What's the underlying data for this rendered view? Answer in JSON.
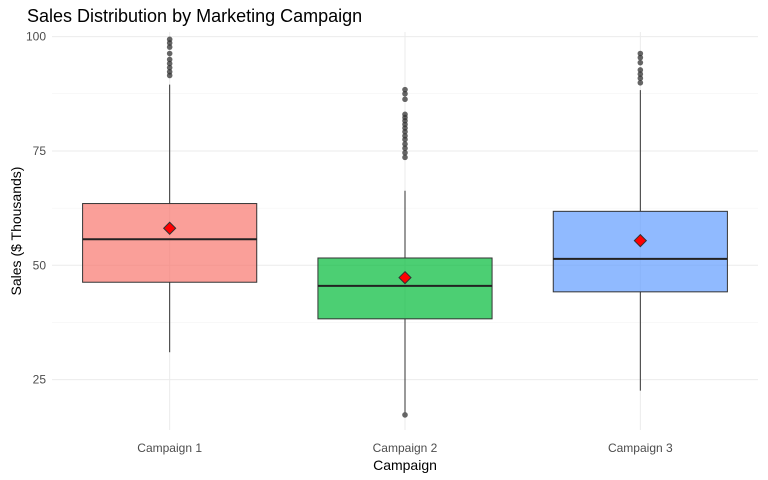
{
  "chart_data": {
    "type": "boxplot",
    "title": "Sales Distribution by Marketing Campaign",
    "xlabel": "Campaign",
    "ylabel": "Sales ($ Thousands)",
    "ylim": [
      14,
      101
    ],
    "y_ticks": [
      25,
      50,
      75,
      100
    ],
    "grid": true,
    "legend": "none",
    "mean_marker_color": "#FF0000",
    "categories": [
      "Campaign 1",
      "Campaign 2",
      "Campaign 3"
    ],
    "boxes": [
      {
        "category": "Campaign 1",
        "color": "#F8766D",
        "whisker_low": 31,
        "q1": 46.3,
        "median": 55.7,
        "q3": 63.5,
        "whisker_high": 89.5,
        "mean": 58.1,
        "outliers": [
          91.5,
          92.3,
          93.2,
          94.1,
          95.0,
          96.3,
          97.7,
          98.6,
          99.4
        ]
      },
      {
        "category": "Campaign 2",
        "color": "#00BA38",
        "whisker_low": 17.8,
        "q1": 38.3,
        "median": 45.5,
        "q3": 51.6,
        "whisker_high": 66.3,
        "mean": 47.3,
        "outliers": [
          17.3,
          73.6,
          74.6,
          75.6,
          76.5,
          77.5,
          78.3,
          79.2,
          80.0,
          80.8,
          81.6,
          82.3,
          83.0,
          86.3,
          87.5,
          88.4
        ]
      },
      {
        "category": "Campaign 3",
        "color": "#619CFF",
        "whisker_low": 22.6,
        "q1": 44.2,
        "median": 51.4,
        "q3": 61.8,
        "whisker_high": 88.3,
        "mean": 55.4,
        "outliers": [
          89.9,
          90.9,
          91.8,
          92.7,
          94.3,
          95.4,
          96.3
        ]
      }
    ]
  }
}
